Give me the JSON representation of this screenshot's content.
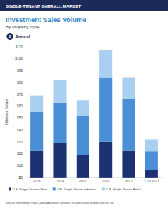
{
  "page": {
    "banner": "SINGLE-TENANT OVERALL MARKET",
    "icon_letter": "A",
    "period_label": "Annual",
    "source": "Source: Northmarq, Real Capital Analytics; analysis includes sales greater than $2.5m"
  },
  "chart_data": {
    "type": "bar",
    "stacked": true,
    "legend": "bottom",
    "grid": false,
    "title": "Investment Sales Volume",
    "subtitle": "By Property Type",
    "y_label": "Billions of Dollars",
    "categories": [
      "2018",
      "2019",
      "2020",
      "2021",
      "2022",
      "YTD 2023"
    ],
    "series": [
      {
        "name": "U.S. Single-Tenant Office",
        "color": "#1d3272",
        "values": [
          23,
          29,
          19,
          30,
          23,
          6
        ]
      },
      {
        "name": "U.S. Single-Tenant Industrial",
        "color": "#4a8fd6",
        "values": [
          32,
          34,
          33,
          54,
          43,
          16
        ]
      },
      {
        "name": "U.S. Single-Tenant Retail",
        "color": "#a9cff1",
        "values": [
          14,
          19,
          13,
          23,
          18,
          10
        ]
      }
    ],
    "ylim": [
      0,
      110
    ],
    "yticks": [
      {
        "value": 0,
        "label": "$0"
      },
      {
        "value": 10,
        "label": "$10"
      },
      {
        "value": 20,
        "label": "$20"
      },
      {
        "value": 30,
        "label": "$30"
      },
      {
        "value": 40,
        "label": "$40"
      },
      {
        "value": 50,
        "label": "$50"
      },
      {
        "value": 60,
        "label": "$60"
      },
      {
        "value": 70,
        "label": "$70"
      },
      {
        "value": 80,
        "label": "$80"
      },
      {
        "value": 90,
        "label": "$90"
      },
      {
        "value": 100,
        "label": "$100"
      },
      {
        "value": 110,
        "label": "$110"
      }
    ]
  }
}
